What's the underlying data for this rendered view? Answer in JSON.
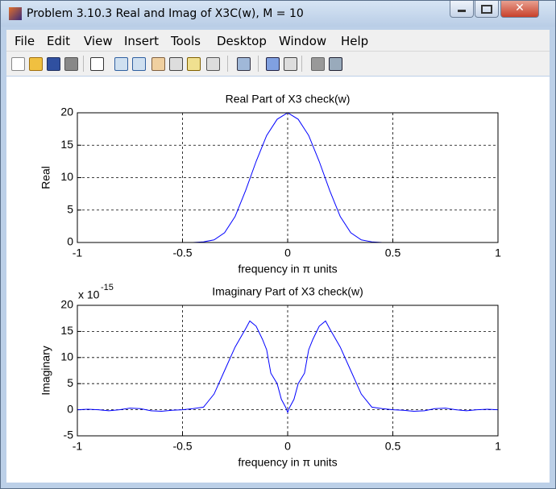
{
  "window": {
    "title": "Problem 3.10.3 Real and Imag of X3C(w), M = 10"
  },
  "menu": [
    "File",
    "Edit",
    "View",
    "Insert",
    "Tools",
    "Desktop",
    "Window",
    "Help"
  ],
  "chart_data": [
    {
      "type": "line",
      "title": "Real Part of X3 check(w)",
      "x_label": "frequency in π units",
      "y_label": "Real",
      "x": [
        -1,
        -0.9,
        -0.8,
        -0.7,
        -0.6,
        -0.5,
        -0.45,
        -0.4,
        -0.35,
        -0.3,
        -0.25,
        -0.2,
        -0.15,
        -0.1,
        -0.05,
        0,
        0.05,
        0.1,
        0.15,
        0.2,
        0.25,
        0.3,
        0.35,
        0.4,
        0.45,
        0.5,
        0.6,
        0.7,
        0.8,
        0.9,
        1
      ],
      "series": [
        {
          "color": "#0000ff",
          "values": [
            0,
            0,
            0,
            0,
            0,
            0,
            0,
            0.1,
            0.4,
            1.5,
            4,
            8,
            12.5,
            16.5,
            19,
            20,
            19,
            16.5,
            12.5,
            8,
            4,
            1.5,
            0.4,
            0.1,
            0,
            0,
            0,
            0,
            0,
            0,
            0
          ]
        }
      ],
      "xlim": [
        -1,
        1
      ],
      "xticks": [
        -1,
        -0.5,
        0,
        0.5,
        1
      ],
      "ylim": [
        0,
        20
      ],
      "yticks": [
        0,
        5,
        10,
        15,
        20
      ],
      "grid": true
    },
    {
      "type": "line",
      "title": "Imaginary Part of X3 check(w)",
      "x_label": "frequency in π units",
      "y_label": "Imaginary",
      "y_multiplier": "x 10",
      "y_exponent": "-15",
      "x": [
        -1,
        -0.95,
        -0.9,
        -0.85,
        -0.8,
        -0.75,
        -0.7,
        -0.65,
        -0.6,
        -0.55,
        -0.5,
        -0.45,
        -0.4,
        -0.35,
        -0.3,
        -0.25,
        -0.2,
        -0.18,
        -0.15,
        -0.12,
        -0.1,
        -0.08,
        -0.05,
        -0.03,
        -0.01,
        0,
        0.01,
        0.03,
        0.05,
        0.08,
        0.1,
        0.12,
        0.15,
        0.18,
        0.2,
        0.25,
        0.3,
        0.35,
        0.4,
        0.45,
        0.5,
        0.55,
        0.6,
        0.65,
        0.7,
        0.75,
        0.8,
        0.85,
        0.9,
        0.95,
        1
      ],
      "series": [
        {
          "color": "#0000ff",
          "values": [
            0,
            0.1,
            0,
            -0.2,
            0,
            0.3,
            0.2,
            -0.2,
            -0.3,
            -0.1,
            0,
            0.2,
            0.5,
            3,
            7.5,
            12,
            15.5,
            17,
            16,
            13.5,
            11.5,
            7,
            5,
            2,
            0.5,
            -0.5,
            0.5,
            2,
            5,
            7,
            11.5,
            13.5,
            16,
            17,
            15.5,
            12,
            7.5,
            3,
            0.5,
            0.2,
            0,
            -0.1,
            -0.3,
            -0.2,
            0.2,
            0.3,
            0,
            -0.2,
            0,
            0.1,
            0
          ]
        }
      ],
      "xlim": [
        -1,
        1
      ],
      "xticks": [
        -1,
        -0.5,
        0,
        0.5,
        1
      ],
      "ylim": [
        -5,
        20
      ],
      "yticks": [
        -5,
        0,
        5,
        10,
        15,
        20
      ],
      "grid": true
    }
  ]
}
